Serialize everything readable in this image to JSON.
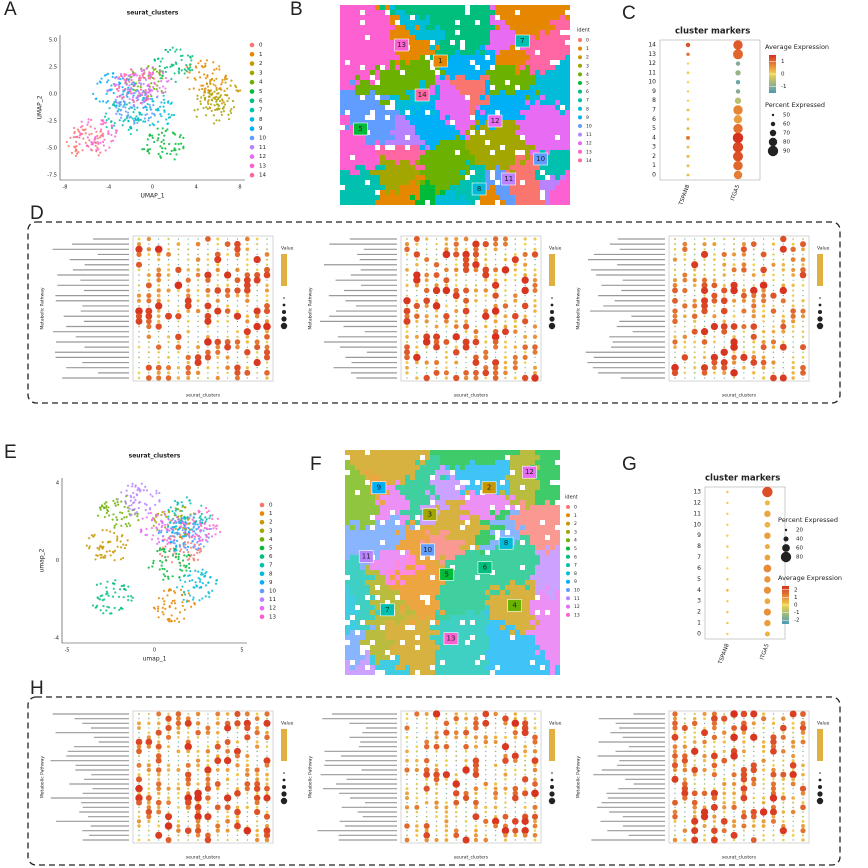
{
  "umap": [
    {
      "letter": "A",
      "title": "seurat_clusters",
      "x_title": "UMAP_1",
      "y_title": "UMAP_2",
      "xticks": [
        "-8",
        "-4",
        "0",
        "4",
        "8"
      ],
      "yticks": [
        "5.0",
        "2.5",
        "0.0",
        "-2.5",
        "-5.0",
        "-7.5"
      ],
      "legend": [
        0,
        1,
        2,
        3,
        4,
        5,
        6,
        7,
        8,
        9,
        10,
        11,
        12,
        13,
        14
      ]
    },
    {
      "letter": "E",
      "title": "seurat_clusters",
      "x_title": "umap_1",
      "y_title": "umap_2",
      "xticks": [
        "-5",
        "0",
        "5"
      ],
      "yticks": [
        "4",
        "0",
        "-4"
      ],
      "legend": [
        0,
        1,
        2,
        3,
        4,
        5,
        6,
        7,
        8,
        9,
        10,
        11,
        12,
        13
      ]
    }
  ],
  "cluster_colors": [
    "#F8766D",
    "#E58700",
    "#C99800",
    "#A3A500",
    "#6BB100",
    "#00BA38",
    "#00BF7D",
    "#00C0AF",
    "#00BCD8",
    "#00B0F6",
    "#619CFF",
    "#B983FF",
    "#E76BF3",
    "#FD61D1",
    "#FF67A4"
  ],
  "spatial": [
    {
      "letter": "B",
      "legend_title": "ident",
      "legend": [
        0,
        1,
        2,
        3,
        4,
        5,
        6,
        7,
        8,
        9,
        10,
        11,
        12,
        13,
        14
      ],
      "labels": [
        "13",
        "1",
        "7",
        "14",
        "5",
        "12",
        "10",
        "11",
        "8"
      ]
    },
    {
      "letter": "F",
      "legend_title": "ident",
      "legend": [
        0,
        1,
        2,
        3,
        4,
        5,
        6,
        7,
        8,
        9,
        10,
        11,
        12,
        13
      ],
      "labels": [
        "12",
        "9",
        "2",
        "3",
        "10",
        "8",
        "11",
        "5",
        "6",
        "7",
        "4",
        "13"
      ]
    }
  ],
  "markers": [
    {
      "letter": "C",
      "title": "cluster markers",
      "genes": [
        "TSPAN8",
        "ITGA5"
      ],
      "clusters": [
        0,
        1,
        2,
        3,
        4,
        5,
        6,
        7,
        8,
        9,
        10,
        11,
        12,
        13,
        14
      ],
      "percent": [
        [
          52,
          52,
          53,
          52,
          58,
          52,
          51,
          52,
          50,
          50,
          50,
          51,
          50,
          55,
          60
        ],
        [
          80,
          85,
          88,
          90,
          90,
          85,
          80,
          85,
          70,
          60,
          60,
          65,
          60,
          88,
          85
        ]
      ],
      "expression": [
        [
          0.2,
          0.3,
          0.3,
          0.2,
          0.8,
          0.3,
          0.1,
          0.2,
          0,
          -0.1,
          0,
          0.1,
          0,
          0.9,
          1.2
        ],
        [
          0.8,
          1,
          1.2,
          1.3,
          1.5,
          0.9,
          0.5,
          0.7,
          -0.5,
          -1,
          -1.2,
          -0.8,
          -1,
          1,
          1.1
        ]
      ],
      "legend_order": [
        "expression",
        "percent"
      ],
      "expr_title": "Average Expression",
      "expr_ticks": [
        1,
        0,
        -1
      ],
      "expr_lim": [
        -1.5,
        1.5
      ],
      "pct_title": "Percent Expressed",
      "pct_ticks": [
        50,
        60,
        70,
        80,
        90
      ],
      "colors": [
        "#4a9bb8",
        "#f2d24b",
        "#d7301f"
      ]
    },
    {
      "letter": "G",
      "title": "cluster markers",
      "genes": [
        "TSPAN8",
        "ITGA5"
      ],
      "clusters": [
        0,
        1,
        2,
        3,
        4,
        5,
        6,
        7,
        8,
        9,
        10,
        11,
        12,
        13
      ],
      "percent": [
        [
          15,
          18,
          20,
          18,
          22,
          20,
          15,
          18,
          20,
          18,
          15,
          16,
          18,
          20
        ],
        [
          40,
          50,
          55,
          45,
          55,
          50,
          60,
          45,
          40,
          50,
          45,
          50,
          40,
          80
        ]
      ],
      "expression": [
        [
          0,
          0.2,
          0.3,
          0.1,
          0.4,
          0.2,
          0,
          0.1,
          0.2,
          0.1,
          0,
          0,
          0.1,
          0.2
        ],
        [
          0.5,
          0.8,
          1,
          0.6,
          1,
          0.9,
          1.1,
          0.7,
          0.6,
          0.8,
          0.5,
          0.7,
          0.4,
          2
        ]
      ],
      "legend_order": [
        "percent",
        "expression"
      ],
      "expr_title": "Average Expression",
      "expr_ticks": [
        2,
        1,
        0,
        -1,
        -2
      ],
      "expr_lim": [
        -2.5,
        2.5
      ],
      "pct_title": "Percent Expressed",
      "pct_ticks": [
        20,
        40,
        60,
        80
      ],
      "colors": [
        "#4a9bb8",
        "#f2d24b",
        "#d7301f"
      ]
    }
  ],
  "pathways": [
    {
      "letter": "D",
      "panels": [
        {
          "y_title": "Metabolic Pathway",
          "x_title": "seurat_clusters",
          "legend_title": "Value"
        },
        {
          "y_title": "Metabolic Pathway",
          "x_title": "seurat_clusters",
          "legend_title": "Value"
        },
        {
          "y_title": "Metabolic Pathway",
          "x_title": "seurat_clusters",
          "legend_title": "Value"
        }
      ]
    },
    {
      "letter": "H",
      "panels": [
        {
          "y_title": "Metabolic Pathway",
          "x_title": "seurat_clusters",
          "legend_title": "Value"
        },
        {
          "y_title": "Metabolic Pathway",
          "x_title": "seurat_clusters",
          "legend_title": "Value"
        },
        {
          "y_title": "Metabolic Pathway",
          "x_title": "seurat_clusters",
          "legend_title": "Value"
        }
      ]
    }
  ]
}
